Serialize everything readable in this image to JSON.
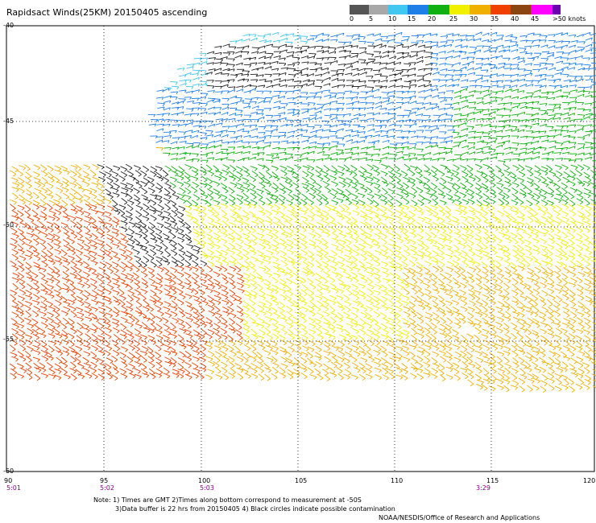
{
  "title": "Rapidsact Winds(25KM) 20150405 ascending",
  "legend": {
    "unit_label": ">50 knots",
    "values": [
      "0",
      "5",
      "10",
      "15",
      "20",
      "25",
      "30",
      "35",
      "40",
      "45"
    ],
    "colors": [
      "#555555",
      "#a8a8a8",
      "#40c8f0",
      "#1e7fe8",
      "#10b010",
      "#f0f000",
      "#f0b000",
      "#f04000",
      "#8b4513",
      "#ff00ff",
      "#6a00b0"
    ]
  },
  "axes": {
    "lat_labels": [
      "-40",
      "-45",
      "-50",
      "-55",
      "-60"
    ],
    "lon_labels": [
      "90",
      "95",
      "100",
      "105",
      "110",
      "115",
      "120"
    ],
    "time_labels": [
      "5:01",
      "5:02",
      "5:03",
      "3:29"
    ]
  },
  "notes": {
    "line1": "Note: 1) Times are GMT 2)Times along bottom correspond to measurement at -50S",
    "line2": "3)Data buffer is 22 hrs from 20150405 4) Black circles indicate possible contamination",
    "credit": "NOAA/NESDIS/Office of Research and Applications"
  }
}
